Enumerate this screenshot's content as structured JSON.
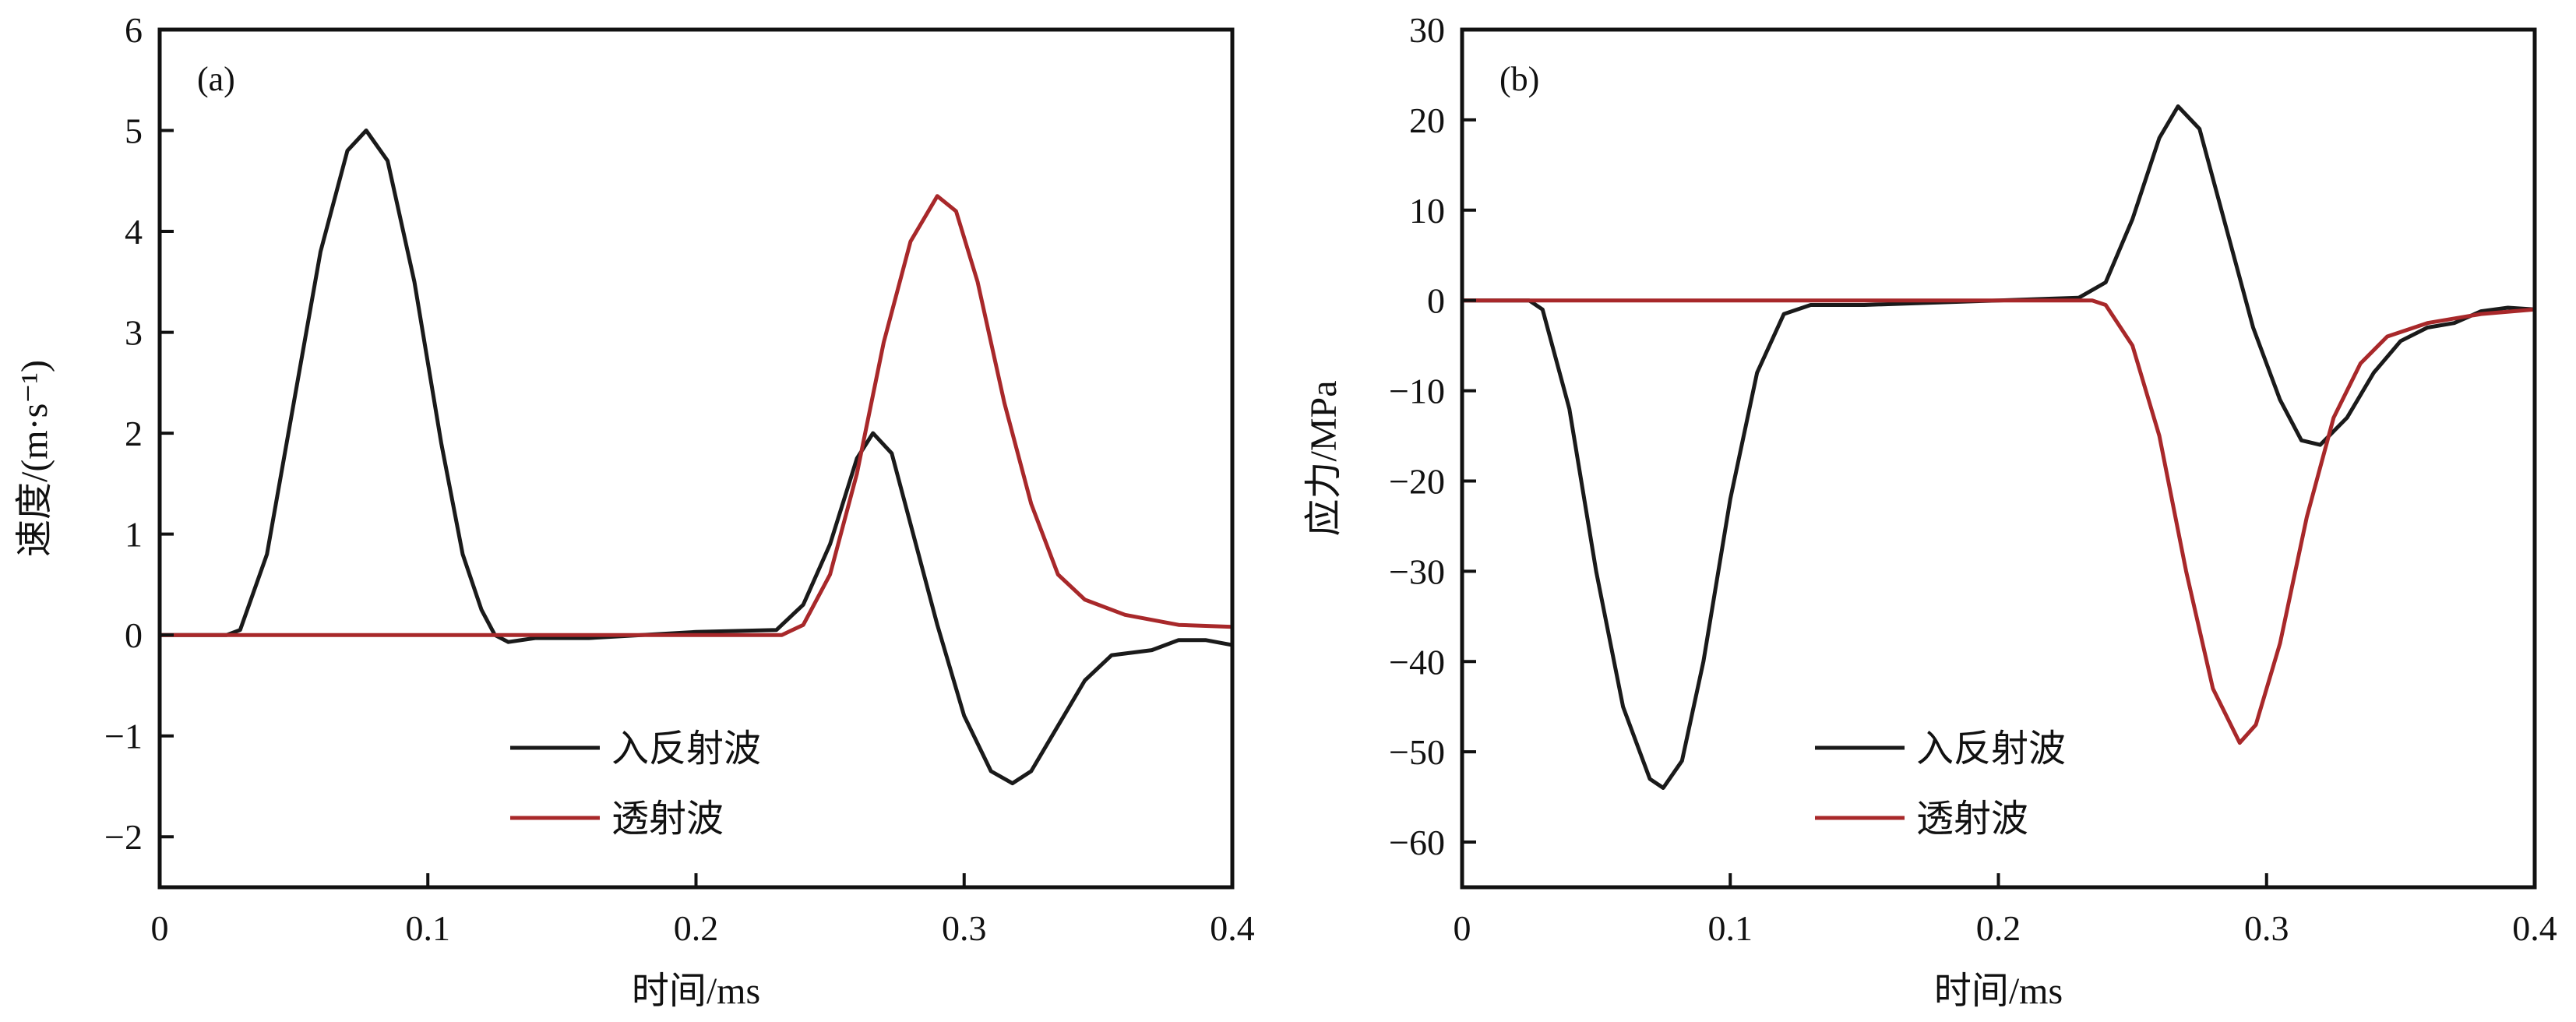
{
  "chart_data": [
    {
      "type": "line",
      "panel_label": "(a)",
      "xlabel": "时间/ms",
      "ylabel": "速度/(m·s⁻¹)",
      "xlim": [
        0,
        0.4
      ],
      "ylim": [
        -2.5,
        6
      ],
      "xticks": [
        0,
        0.1,
        0.2,
        0.3,
        0.4
      ],
      "xtick_labels": [
        "0",
        "0.1",
        "0.2",
        "0.3",
        "0.4"
      ],
      "yticks": [
        -2,
        -1,
        0,
        1,
        2,
        3,
        4,
        5,
        6
      ],
      "ytick_labels": [
        "−2",
        "−1",
        "0",
        "1",
        "2",
        "3",
        "4",
        "5",
        "6"
      ],
      "legend_position": "bottom-center",
      "grid": false,
      "series": [
        {
          "name": "入反射波",
          "color": "#1a1a1a",
          "x": [
            0,
            0.025,
            0.03,
            0.04,
            0.05,
            0.06,
            0.07,
            0.077,
            0.085,
            0.095,
            0.105,
            0.113,
            0.12,
            0.125,
            0.13,
            0.14,
            0.16,
            0.2,
            0.23,
            0.24,
            0.25,
            0.26,
            0.266,
            0.273,
            0.28,
            0.29,
            0.3,
            0.31,
            0.318,
            0.325,
            0.335,
            0.345,
            0.355,
            0.37,
            0.38,
            0.39,
            0.4
          ],
          "y": [
            0,
            0,
            0.05,
            0.8,
            2.3,
            3.8,
            4.8,
            5.0,
            4.7,
            3.5,
            1.9,
            0.8,
            0.25,
            0,
            -0.07,
            -0.03,
            -0.03,
            0.03,
            0.05,
            0.3,
            0.9,
            1.75,
            2.0,
            1.8,
            1.1,
            0.1,
            -0.8,
            -1.35,
            -1.47,
            -1.35,
            -0.9,
            -0.45,
            -0.2,
            -0.15,
            -0.05,
            -0.05,
            -0.1
          ]
        },
        {
          "name": "透射波",
          "color": "#a8282a",
          "x": [
            0,
            0.232,
            0.24,
            0.25,
            0.26,
            0.27,
            0.28,
            0.29,
            0.297,
            0.305,
            0.315,
            0.325,
            0.335,
            0.345,
            0.36,
            0.38,
            0.4
          ],
          "y": [
            0,
            0,
            0.1,
            0.6,
            1.6,
            2.9,
            3.9,
            4.35,
            4.2,
            3.5,
            2.3,
            1.3,
            0.6,
            0.35,
            0.2,
            0.1,
            0.08
          ]
        }
      ]
    },
    {
      "type": "line",
      "panel_label": "(b)",
      "xlabel": "时间/ms",
      "ylabel": "应力/MPa",
      "xlim": [
        0,
        0.4
      ],
      "ylim": [
        -65,
        30
      ],
      "xticks": [
        0,
        0.1,
        0.2,
        0.3,
        0.4
      ],
      "xtick_labels": [
        "0",
        "0.1",
        "0.2",
        "0.3",
        "0.4"
      ],
      "yticks": [
        -60,
        -50,
        -40,
        -30,
        -20,
        -10,
        0,
        10,
        20,
        30
      ],
      "ytick_labels": [
        "−60",
        "−50",
        "−40",
        "−30",
        "−20",
        "−10",
        "0",
        "10",
        "20",
        "30"
      ],
      "legend_position": "bottom-center",
      "grid": false,
      "series": [
        {
          "name": "入反射波",
          "color": "#1a1a1a",
          "x": [
            0,
            0.025,
            0.03,
            0.04,
            0.05,
            0.06,
            0.07,
            0.075,
            0.082,
            0.09,
            0.1,
            0.11,
            0.12,
            0.13,
            0.15,
            0.2,
            0.23,
            0.24,
            0.25,
            0.26,
            0.267,
            0.275,
            0.285,
            0.295,
            0.305,
            0.313,
            0.32,
            0.33,
            0.34,
            0.35,
            0.36,
            0.37,
            0.38,
            0.39,
            0.4
          ],
          "y": [
            0,
            0,
            -1,
            -12,
            -30,
            -45,
            -53,
            -54,
            -51,
            -40,
            -22,
            -8,
            -1.5,
            -0.5,
            -0.5,
            0,
            0.3,
            2,
            9,
            18,
            21.5,
            19,
            8,
            -3,
            -11,
            -15.5,
            -16,
            -13,
            -8,
            -4.5,
            -3,
            -2.5,
            -1.2,
            -0.8,
            -1
          ]
        },
        {
          "name": "透射波",
          "color": "#a8282a",
          "x": [
            0,
            0.235,
            0.24,
            0.25,
            0.26,
            0.27,
            0.28,
            0.29,
            0.296,
            0.305,
            0.315,
            0.325,
            0.335,
            0.345,
            0.36,
            0.38,
            0.4
          ],
          "y": [
            0,
            0,
            -0.5,
            -5,
            -15,
            -30,
            -43,
            -49,
            -47,
            -38,
            -24,
            -13,
            -7,
            -4,
            -2.5,
            -1.5,
            -1
          ]
        }
      ]
    }
  ]
}
